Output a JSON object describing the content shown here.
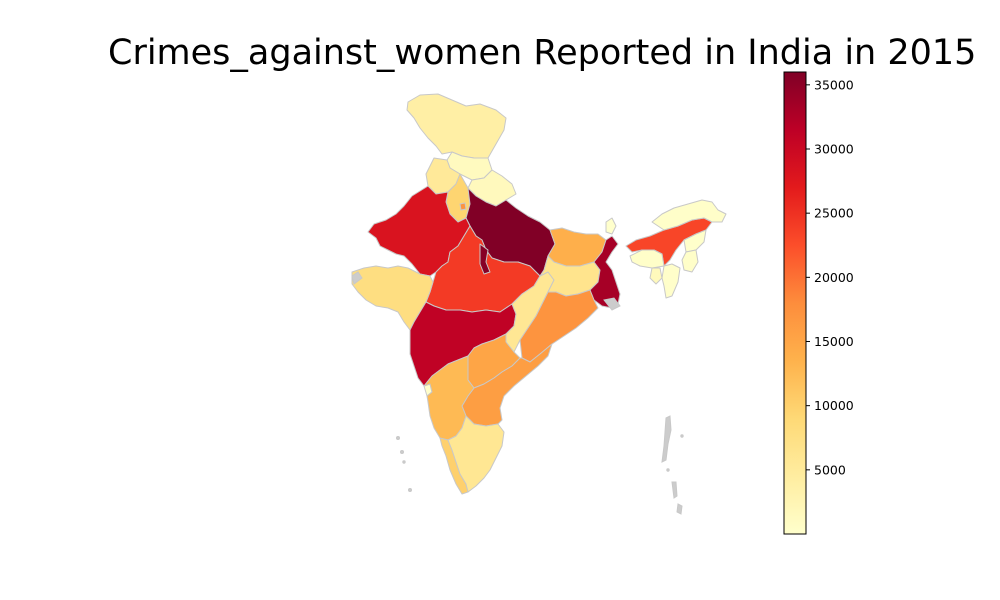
{
  "title": "Crimes_against_women Reported in India in 2015",
  "colorbar": {
    "colormap": "YlOrRd",
    "min": 0,
    "max": 36000,
    "ticks": [
      5000,
      10000,
      15000,
      20000,
      25000,
      30000,
      35000
    ],
    "tick_labels": [
      "5000",
      "10000",
      "15000",
      "20000",
      "25000",
      "30000",
      "35000"
    ]
  },
  "colors": {
    "border": "#c8c8c8",
    "no_data": "#cccccc",
    "ramp": [
      "#ffffcc",
      "#ffeda0",
      "#fed976",
      "#feb24c",
      "#fd8d3c",
      "#fc4e2a",
      "#e31a1c",
      "#bd0026",
      "#800026"
    ]
  },
  "regions": [
    {
      "id": "jammu-kashmir",
      "value": 4000
    },
    {
      "id": "himachal-pradesh",
      "value": 1300
    },
    {
      "id": "punjab",
      "value": 5300
    },
    {
      "id": "haryana",
      "value": 9500
    },
    {
      "id": "uttarakhand",
      "value": 1500
    },
    {
      "id": "rajasthan",
      "value": 28200
    },
    {
      "id": "uttar-pradesh",
      "value": 35900
    },
    {
      "id": "madhya-pradesh",
      "value": 24200
    },
    {
      "id": "bundelkhand-enclave",
      "value": 35500
    },
    {
      "id": "gujarat",
      "value": 7800
    },
    {
      "id": "maharashtra",
      "value": 31200
    },
    {
      "id": "bihar",
      "value": 13900
    },
    {
      "id": "jharkhand",
      "value": 6500
    },
    {
      "id": "west-bengal",
      "value": 33200
    },
    {
      "id": "chhattisgarh",
      "value": 5800
    },
    {
      "id": "odisha",
      "value": 17200
    },
    {
      "id": "telangana",
      "value": 15100
    },
    {
      "id": "andhra-pradesh",
      "value": 15900
    },
    {
      "id": "karnataka",
      "value": 12600
    },
    {
      "id": "tamil-nadu",
      "value": 5900
    },
    {
      "id": "kerala",
      "value": 10000
    },
    {
      "id": "goa",
      "value": 200
    },
    {
      "id": "sikkim",
      "value": 50
    },
    {
      "id": "assam",
      "value": 23300
    },
    {
      "id": "arunachal-pradesh",
      "value": 300
    },
    {
      "id": "meghalaya",
      "value": 300
    },
    {
      "id": "nagaland",
      "value": 100
    },
    {
      "id": "manipur",
      "value": 300
    },
    {
      "id": "mizoram",
      "value": 200
    },
    {
      "id": "tripura",
      "value": 1600
    },
    {
      "id": "delhi",
      "value": 17100
    }
  ]
}
